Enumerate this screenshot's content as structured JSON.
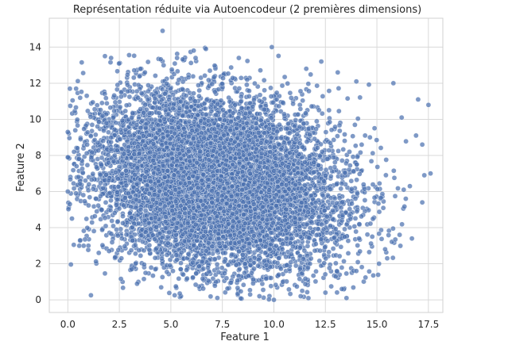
{
  "chart_data": {
    "type": "scatter",
    "title": "Représentation réduite via Autoencodeur (2 premières dimensions)",
    "xlabel": "Feature 1",
    "ylabel": "Feature 2",
    "xlim": [
      -0.9,
      18.2
    ],
    "ylim": [
      -0.7,
      15.6
    ],
    "grid": true,
    "legend": "none",
    "marker_color": "#4c72b0",
    "marker_edge_color": "#ffffff",
    "x_ticks": [
      0.0,
      2.5,
      5.0,
      7.5,
      10.0,
      12.5,
      15.0,
      17.5
    ],
    "x_tick_labels": [
      "0.0",
      "2.5",
      "5.0",
      "7.5",
      "10.0",
      "12.5",
      "15.0",
      "17.5"
    ],
    "y_ticks": [
      0,
      2,
      4,
      6,
      8,
      10,
      12,
      14
    ],
    "y_tick_labels": [
      "0",
      "2",
      "4",
      "6",
      "8",
      "10",
      "12",
      "14"
    ],
    "dense_region": {
      "center": [
        7.2,
        6.5
      ],
      "x_range": [
        0.0,
        16.5
      ],
      "y_range": [
        0.0,
        14.0
      ],
      "description_of_density": "single dense blob"
    },
    "points": [
      [
        4.6,
        14.9
      ],
      [
        6.7,
        13.9
      ],
      [
        9.9,
        14.0
      ],
      [
        1.8,
        13.5
      ],
      [
        2.1,
        13.4
      ],
      [
        12.3,
        13.2
      ],
      [
        5.3,
        13.4
      ],
      [
        6.2,
        13.4
      ],
      [
        8.3,
        13.4
      ],
      [
        13.1,
        12.6
      ],
      [
        14.0,
        12.1
      ],
      [
        15.8,
        12.0
      ],
      [
        17.0,
        11.1
      ],
      [
        17.5,
        10.8
      ],
      [
        16.2,
        10.1
      ],
      [
        16.9,
        9.1
      ],
      [
        17.2,
        8.6
      ],
      [
        17.6,
        7.0
      ],
      [
        17.3,
        6.9
      ],
      [
        16.6,
        6.3
      ],
      [
        16.3,
        6.1
      ],
      [
        16.4,
        5.6
      ],
      [
        17.2,
        5.4
      ],
      [
        16.7,
        3.4
      ],
      [
        16.1,
        3.6
      ],
      [
        15.5,
        2.3
      ],
      [
        15.1,
        2.0
      ],
      [
        15.4,
        2.8
      ],
      [
        0.1,
        11.7
      ],
      [
        0.4,
        11.7
      ],
      [
        0.0,
        9.3
      ],
      [
        0.3,
        8.2
      ],
      [
        0.0,
        7.9
      ],
      [
        0.0,
        6.0
      ],
      [
        0.1,
        5.3
      ],
      [
        0.2,
        4.5
      ],
      [
        0.6,
        3.3
      ],
      [
        1.0,
        3.0
      ],
      [
        1.5,
        2.6
      ],
      [
        2.0,
        2.7
      ],
      [
        2.6,
        2.3
      ],
      [
        3.1,
        1.7
      ],
      [
        5.1,
        1.6
      ],
      [
        5.6,
        1.4
      ],
      [
        7.7,
        1.2
      ],
      [
        9.3,
        0.2
      ],
      [
        10.0,
        0.0
      ],
      [
        11.3,
        0.2
      ],
      [
        12.5,
        0.4
      ],
      [
        13.3,
        0.6
      ],
      [
        13.0,
        1.3
      ],
      [
        14.0,
        1.6
      ]
    ]
  }
}
